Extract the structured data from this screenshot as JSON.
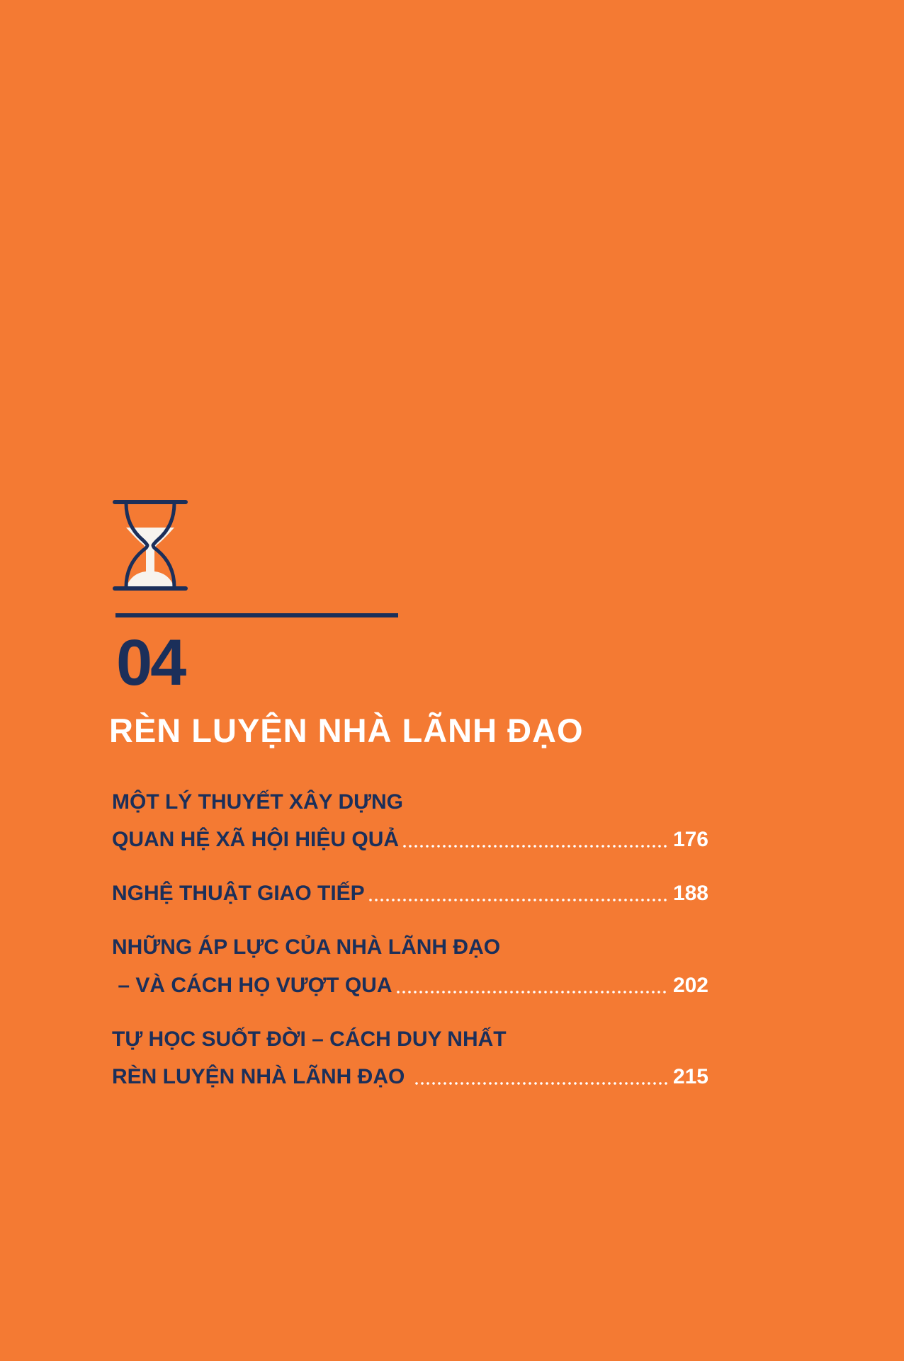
{
  "colors": {
    "background": "#f47a33",
    "navy": "#1b2f5a",
    "white": "#ffffff"
  },
  "chapter": {
    "icon": "hourglass-icon",
    "number": "04",
    "title": "RÈN LUYỆN NHÀ LÃNH ĐẠO"
  },
  "toc": [
    {
      "lines": [
        "MỘT LÝ THUYẾT XÂY DỰNG",
        "QUAN HỆ XÃ HỘI HIỆU QUẢ"
      ],
      "page": "176"
    },
    {
      "lines": [
        "NGHỆ THUẬT GIAO TIẾP"
      ],
      "page": "188"
    },
    {
      "lines": [
        "NHỮNG ÁP LỰC CỦA NHÀ LÃNH ĐẠO",
        " – VÀ CÁCH HỌ VƯỢT QUA"
      ],
      "page": "202"
    },
    {
      "lines": [
        "TỰ HỌC SUỐT ĐỜI – CÁCH DUY NHẤT",
        "RÈN LUYỆN NHÀ LÃNH ĐẠO "
      ],
      "page": "215"
    }
  ]
}
